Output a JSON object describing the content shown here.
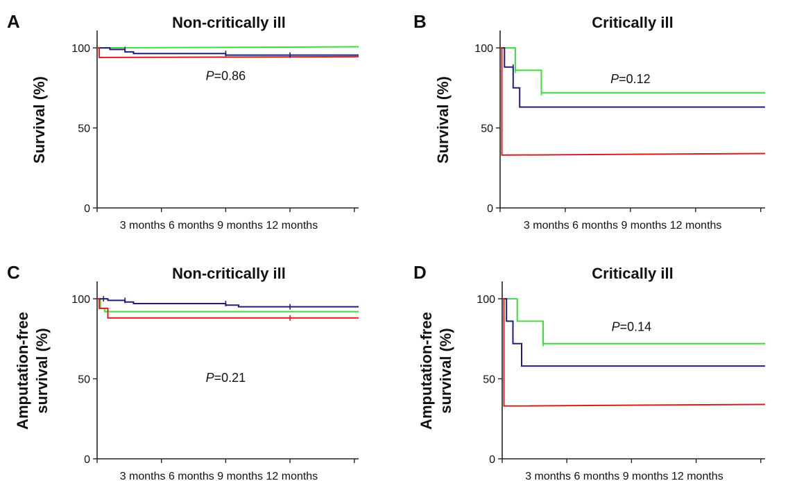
{
  "colors": {
    "green": "#3ddc3d",
    "blue": "#1e1e78",
    "red": "#d41f1f"
  },
  "chart_data": [
    {
      "type": "line",
      "panel_letter": "A",
      "title": "Non-critically ill",
      "ylabel": "Survival (%)",
      "ylabel_lines": [
        "Survival (%)"
      ],
      "xlabel": "",
      "x_ticks": [
        3,
        6,
        9,
        12
      ],
      "x_tick_labels": [
        "3 months",
        "6 months",
        "9 months",
        "12 months"
      ],
      "y_ticks": [
        0,
        50,
        100
      ],
      "y_tick_labels": [
        "0",
        "50",
        "100"
      ],
      "xlim": [
        0,
        12.2
      ],
      "ylim": [
        0,
        110
      ],
      "grid": false,
      "annotation": {
        "italic": "P",
        "text": "=0.86",
        "x": 6,
        "y": 80
      },
      "series": [
        {
          "color": "green",
          "points": [
            [
              0,
              100
            ],
            [
              12.2,
              100.7
            ]
          ]
        },
        {
          "color": "blue",
          "points": [
            [
              0,
              100
            ],
            [
              0.6,
              100
            ],
            [
              0.6,
              99
            ],
            [
              1.3,
              99
            ],
            [
              1.3,
              97.5
            ],
            [
              1.7,
              97.5
            ],
            [
              1.7,
              96.5
            ],
            [
              6,
              96.5
            ],
            [
              6,
              95.5
            ],
            [
              12.2,
              95.5
            ]
          ]
        },
        {
          "color": "red",
          "points": [
            [
              0,
              100
            ],
            [
              0.1,
              100
            ],
            [
              0.1,
              94
            ],
            [
              12.2,
              94.5
            ]
          ]
        }
      ],
      "censor_marks": [
        [
          1.3,
          99,
          "blue"
        ],
        [
          6,
          96.5,
          "blue"
        ],
        [
          9,
          95.5,
          "blue"
        ]
      ]
    },
    {
      "type": "line",
      "panel_letter": "B",
      "title": "Critically ill",
      "ylabel": "Survival (%)",
      "ylabel_lines": [
        "Survival (%)"
      ],
      "xlabel": "",
      "x_ticks": [
        3,
        6,
        9,
        12
      ],
      "x_tick_labels": [
        "3 months",
        "6 months",
        "9 months",
        "12 months"
      ],
      "y_ticks": [
        0,
        50,
        100
      ],
      "y_tick_labels": [
        "0",
        "50",
        "100"
      ],
      "xlim": [
        0,
        12.2
      ],
      "ylim": [
        0,
        110
      ],
      "grid": false,
      "annotation": {
        "italic": "P",
        "text": "=0.12",
        "x": 6,
        "y": 78
      },
      "series": [
        {
          "color": "green",
          "points": [
            [
              0,
              100
            ],
            [
              0.7,
              100
            ],
            [
              0.7,
              86
            ],
            [
              1.9,
              86
            ],
            [
              1.9,
              72
            ],
            [
              12.2,
              72
            ]
          ]
        },
        {
          "color": "blue",
          "points": [
            [
              0,
              100
            ],
            [
              0.2,
              100
            ],
            [
              0.2,
              88
            ],
            [
              0.6,
              88
            ],
            [
              0.6,
              75
            ],
            [
              0.9,
              75
            ],
            [
              0.9,
              63
            ],
            [
              12.2,
              63
            ]
          ]
        },
        {
          "color": "red",
          "points": [
            [
              0,
              100
            ],
            [
              0.08,
              100
            ],
            [
              0.08,
              33
            ],
            [
              12.2,
              34
            ]
          ]
        }
      ],
      "censor_marks": [
        [
          0.7,
          86,
          "green"
        ],
        [
          1.9,
          72,
          "green"
        ],
        [
          0.6,
          88,
          "blue"
        ]
      ]
    },
    {
      "type": "line",
      "panel_letter": "C",
      "title": "Non-critically ill",
      "ylabel": "Amputation-free survival (%)",
      "ylabel_lines": [
        "Amputation-free",
        "survival (%)"
      ],
      "xlabel": "",
      "x_ticks": [
        3,
        6,
        9,
        12
      ],
      "x_tick_labels": [
        "3 months",
        "6 months",
        "9 months",
        "12 months"
      ],
      "y_ticks": [
        0,
        50,
        100
      ],
      "y_tick_labels": [
        "0",
        "50",
        "100"
      ],
      "xlim": [
        0,
        12.2
      ],
      "ylim": [
        0,
        110
      ],
      "grid": false,
      "annotation": {
        "italic": "P",
        "text": "=0.21",
        "x": 6,
        "y": 48
      },
      "series": [
        {
          "color": "green",
          "points": [
            [
              0,
              100
            ],
            [
              0.15,
              100
            ],
            [
              0.15,
              94
            ],
            [
              0.35,
              94
            ],
            [
              0.35,
              92
            ],
            [
              12.2,
              92
            ]
          ]
        },
        {
          "color": "blue",
          "points": [
            [
              0,
              100
            ],
            [
              0.5,
              100
            ],
            [
              0.5,
              99
            ],
            [
              1.3,
              99
            ],
            [
              1.3,
              98
            ],
            [
              1.7,
              98
            ],
            [
              1.7,
              97
            ],
            [
              6,
              97
            ],
            [
              6,
              96
            ],
            [
              6.6,
              96
            ],
            [
              6.6,
              95
            ],
            [
              12.2,
              95
            ]
          ]
        },
        {
          "color": "red",
          "points": [
            [
              0,
              100
            ],
            [
              0.1,
              100
            ],
            [
              0.1,
              94
            ],
            [
              0.5,
              94
            ],
            [
              0.5,
              88
            ],
            [
              12.2,
              88
            ]
          ]
        }
      ],
      "censor_marks": [
        [
          0.3,
          100,
          "blue"
        ],
        [
          1.3,
          99,
          "blue"
        ],
        [
          6,
          97,
          "blue"
        ],
        [
          9,
          95,
          "blue"
        ],
        [
          9,
          88,
          "red"
        ]
      ]
    },
    {
      "type": "line",
      "panel_letter": "D",
      "title": "Critically ill",
      "ylabel": "Amputation-free survival (%)",
      "ylabel_lines": [
        "Amputation-free",
        "survival (%)"
      ],
      "xlabel": "",
      "x_ticks": [
        3,
        6,
        9,
        12
      ],
      "x_tick_labels": [
        "3 months",
        "6 months",
        "9 months",
        "12 months"
      ],
      "y_ticks": [
        0,
        50,
        100
      ],
      "y_tick_labels": [
        "0",
        "50",
        "100"
      ],
      "xlim": [
        0,
        12.2
      ],
      "ylim": [
        0,
        110
      ],
      "grid": false,
      "annotation": {
        "italic": "P",
        "text": "=0.14",
        "x": 6,
        "y": 80
      },
      "series": [
        {
          "color": "green",
          "points": [
            [
              0,
              100
            ],
            [
              0.7,
              100
            ],
            [
              0.7,
              86
            ],
            [
              1.9,
              86
            ],
            [
              1.9,
              72
            ],
            [
              12.2,
              72
            ]
          ]
        },
        {
          "color": "blue",
          "points": [
            [
              0,
              100
            ],
            [
              0.2,
              100
            ],
            [
              0.2,
              86
            ],
            [
              0.5,
              86
            ],
            [
              0.5,
              72
            ],
            [
              0.9,
              72
            ],
            [
              0.9,
              58
            ],
            [
              12.2,
              58
            ]
          ]
        },
        {
          "color": "red",
          "points": [
            [
              0,
              100
            ],
            [
              0.08,
              100
            ],
            [
              0.08,
              33
            ],
            [
              12.2,
              34
            ]
          ]
        }
      ],
      "censor_marks": [
        [
          1.9,
          72,
          "green"
        ]
      ]
    }
  ]
}
